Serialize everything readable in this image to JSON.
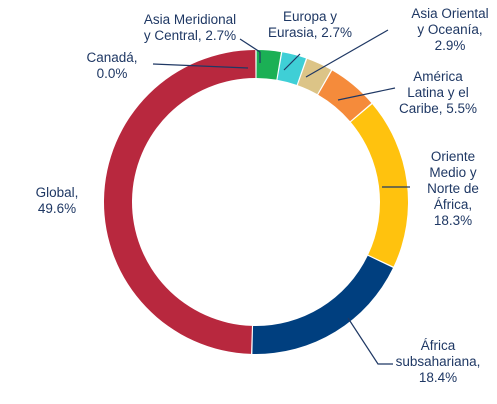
{
  "chart_data": {
    "type": "pie",
    "donut": true,
    "title": "",
    "categories": [
      "Canadá",
      "Asia Meridional y Central",
      "Europa y Eurasia",
      "Asia Oriental y Oceanía",
      "América Latina y el Caribe",
      "Oriente Medio y Norte de África",
      "África subsahariana",
      "Global"
    ],
    "values": [
      0.0,
      2.7,
      2.7,
      2.9,
      5.5,
      18.3,
      18.4,
      49.6
    ],
    "colors": [
      "#7f7f7f",
      "#1bb055",
      "#3fcfd6",
      "#dcc487",
      "#f58b3b",
      "#ffc20e",
      "#003f7f",
      "#b8283e"
    ],
    "labels": [
      [
        "Canadá,",
        "0.0%"
      ],
      [
        "Asia Meridional",
        "y Central, 2.7%"
      ],
      [
        "Europa y",
        "Eurasia, 2.7%"
      ],
      [
        "Asia Oriental",
        "y Oceanía,",
        "2.9%"
      ],
      [
        "América",
        "Latina y el",
        "Caribe, 5.5%"
      ],
      [
        "Oriente",
        "Medio y",
        "Norte de",
        "África,",
        "18.3%"
      ],
      [
        "África",
        "subsahariana,",
        "18.4%"
      ],
      [
        "Global,",
        "49.6%"
      ]
    ],
    "legend": "none"
  }
}
